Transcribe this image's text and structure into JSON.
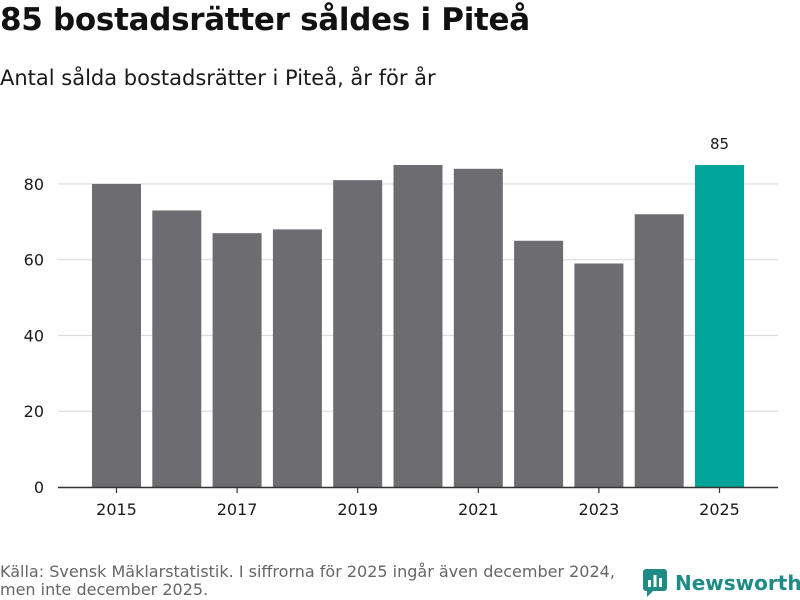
{
  "header": {
    "title": "85 bostadsrätter såldes i Piteå",
    "subtitle": "Antal sålda bostadsrätter i Piteå, år för år"
  },
  "footer": {
    "source": "Källa: Svensk Mäklarstatistik. I siffrorna för 2025 ingår även december 2024, men inte december 2025.",
    "brand": "Newsworthy"
  },
  "colors": {
    "bar": "#6d6c71",
    "highlight": "#00a499",
    "grid": "#dddddd",
    "axis": "#333333",
    "brand": "#1f8b86"
  },
  "chart_data": {
    "type": "bar",
    "title": "85 bostadsrätter såldes i Piteå",
    "subtitle": "Antal sålda bostadsrätter i Piteå, år för år",
    "xlabel": "",
    "ylabel": "",
    "categories": [
      "2015",
      "2016",
      "2017",
      "2018",
      "2019",
      "2020",
      "2021",
      "2022",
      "2023",
      "2024",
      "2025"
    ],
    "values": [
      80,
      73,
      67,
      68,
      81,
      85,
      84,
      65,
      59,
      72,
      85
    ],
    "x_tick_labels": [
      "2015",
      "2017",
      "2019",
      "2021",
      "2023",
      "2025"
    ],
    "y_ticks": [
      0,
      20,
      40,
      60,
      80
    ],
    "ylim": [
      0,
      90
    ],
    "grid": true,
    "highlight_index": 10,
    "data_labels": [
      {
        "index": 10,
        "text": "85"
      }
    ]
  }
}
